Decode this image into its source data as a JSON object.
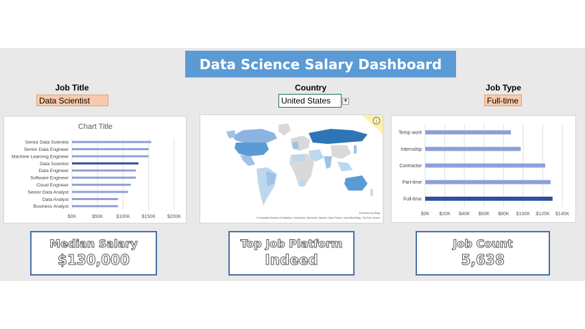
{
  "dashboard": {
    "title": "Data Science Salary Dashboard"
  },
  "filters": {
    "job_title": {
      "label": "Job Title",
      "value": "Data Scientist"
    },
    "country": {
      "label": "Country",
      "value": "United States"
    },
    "job_type": {
      "label": "Job Type",
      "value": "Full-time"
    }
  },
  "map": {
    "attribution": "© Australian Bureau of Statistics, GeoNames, Microsoft, Navinfo, Open Places, OpenStreetMap, TomTom, Zenrin",
    "powered_by": "Powered by Bing",
    "info_icon": "info-icon"
  },
  "kpis": {
    "median_salary": {
      "label": "Median Salary",
      "value": "$130,000"
    },
    "top_platform": {
      "label": "Top Job Platform",
      "value": "Indeed"
    },
    "job_count": {
      "label": "Job Count",
      "value": "5,638"
    }
  },
  "colors": {
    "banner": "#5b9bd5",
    "bar": "#8e9fd8",
    "bar_highlight": "#2f4f9e",
    "filter_fill": "#f8cbad",
    "kpi_border": "#4a6fa5"
  },
  "chart_data": [
    {
      "type": "bar",
      "orientation": "horizontal",
      "title": "Chart Title",
      "categories": [
        "Senior Data Scientist",
        "Senior Data Engineer",
        "Machine Learning Engineer",
        "Data Scientist",
        "Data Engineer",
        "Software Engineer",
        "Cloud Engineer",
        "Senior Data Analyst",
        "Data Analyst",
        "Business Analyst"
      ],
      "values": [
        155000,
        150000,
        150000,
        130000,
        125000,
        125000,
        115000,
        110000,
        90000,
        90000
      ],
      "highlight": "Data Scientist",
      "xlim": [
        0,
        200000
      ],
      "xticks": [
        0,
        50000,
        100000,
        150000,
        200000
      ],
      "xtick_labels": [
        "$0K",
        "$50K",
        "$100K",
        "$150K",
        "$200K"
      ],
      "grid": true,
      "legend": "none"
    },
    {
      "type": "bar",
      "orientation": "horizontal",
      "title": "",
      "categories": [
        "Temp work",
        "Internship",
        "Contractor",
        "Part-time",
        "Full-time"
      ],
      "values": [
        87500,
        97500,
        122500,
        128000,
        130000
      ],
      "highlight": "Full-time",
      "xlim": [
        0,
        140000
      ],
      "xticks": [
        0,
        20000,
        40000,
        60000,
        80000,
        100000,
        120000,
        140000
      ],
      "xtick_labels": [
        "$0K",
        "$20K",
        "$40K",
        "$60K",
        "$80K",
        "$100K",
        "$120K",
        "$140K"
      ],
      "grid": true,
      "legend": "none"
    }
  ]
}
